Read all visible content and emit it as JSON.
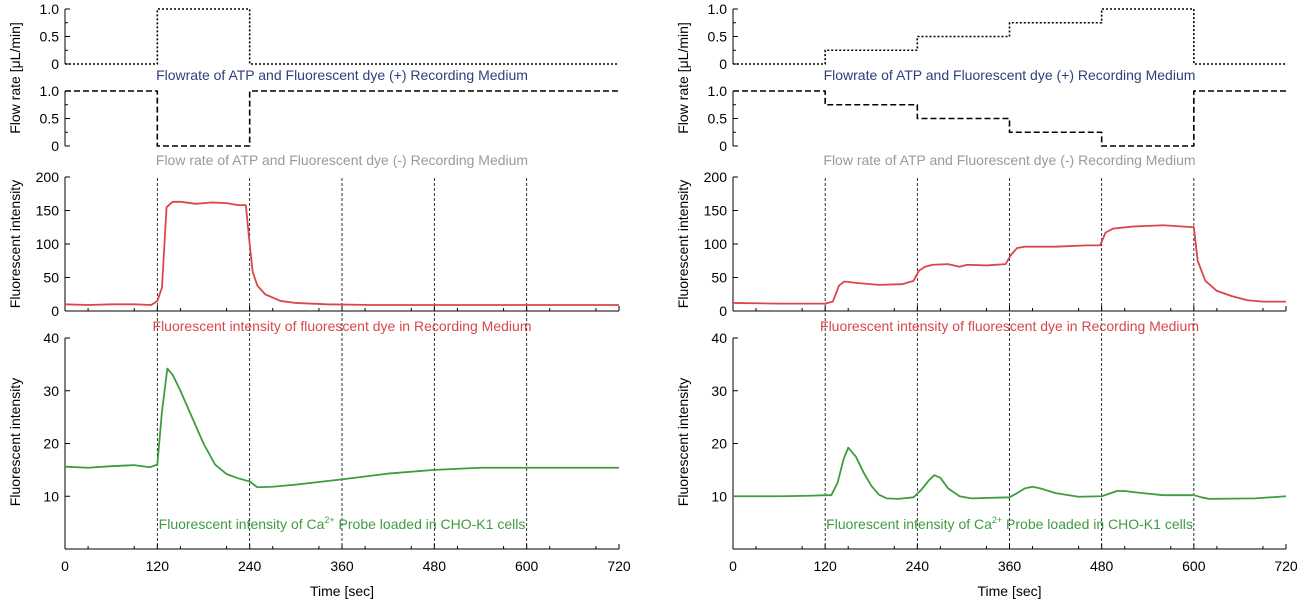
{
  "figure": {
    "x_axis_title": "Time [sec]",
    "y_title_flow_upper": "Flow rate [μL/min]",
    "y_title_fluo": "Fluorescent intensity"
  },
  "colors": {
    "flow_plus_caption": "#2e3f7c",
    "flow_minus_caption": "#9a9a9a",
    "dye": "#d9474a",
    "ca": "#3f9c3f"
  },
  "chart_data": [
    {
      "type": "line",
      "panel": "left-flow-plus",
      "caption": "Flowrate of ATP and Fluorescent dye (+) Recording Medium",
      "xlim": [
        0,
        720
      ],
      "ylim": [
        0,
        1.0
      ],
      "yticks": [
        "0",
        "0.5",
        "1.0"
      ],
      "x": [
        0,
        120,
        120,
        240,
        240,
        720
      ],
      "y": [
        0,
        0,
        1.0,
        1.0,
        0,
        0
      ],
      "line_style": "dotted"
    },
    {
      "type": "line",
      "panel": "left-flow-minus",
      "caption": "Flow rate of ATP and Fluorescent dye (-) Recording Medium",
      "xlim": [
        0,
        720
      ],
      "ylim": [
        0,
        1.0
      ],
      "yticks": [
        "0",
        "0.5",
        "1.0"
      ],
      "x": [
        0,
        120,
        120,
        240,
        240,
        720
      ],
      "y": [
        1.0,
        1.0,
        0,
        0,
        1.0,
        1.0
      ],
      "line_style": "dashed"
    },
    {
      "type": "line",
      "panel": "left-dye",
      "caption": "Fluorescent intensity of fluorescent dye in Recording Medium",
      "xlim": [
        0,
        720
      ],
      "ylim": [
        0,
        200
      ],
      "yticks": [
        "0",
        "50",
        "100",
        "150",
        "200"
      ],
      "x": [
        0,
        30,
        60,
        90,
        112,
        120,
        126,
        132,
        140,
        150,
        170,
        190,
        210,
        225,
        235,
        240,
        244,
        250,
        260,
        280,
        300,
        340,
        400,
        480,
        560,
        600,
        660,
        720
      ],
      "y": [
        10,
        9,
        10,
        10,
        9,
        15,
        35,
        155,
        163,
        163,
        160,
        162,
        161,
        158,
        158,
        100,
        58,
        38,
        25,
        15,
        12,
        10,
        9,
        9,
        9,
        9,
        9,
        9
      ]
    },
    {
      "type": "line",
      "panel": "left-ca",
      "caption": "Fluorescent intensity of Ca",
      "caption_sup": "2+",
      "caption_tail": " Probe loaded in CHO-K1 cells",
      "xlim": [
        0,
        720
      ],
      "ylim": [
        0,
        40
      ],
      "yticks": [
        "10",
        "20",
        "30",
        "40"
      ],
      "x": [
        0,
        30,
        60,
        90,
        110,
        120,
        126,
        133,
        140,
        150,
        165,
        180,
        195,
        210,
        225,
        240,
        250,
        270,
        300,
        360,
        420,
        480,
        540,
        600,
        660,
        720
      ],
      "y": [
        15.6,
        15.4,
        15.7,
        15.9,
        15.5,
        16.0,
        26,
        34.2,
        33,
        30,
        25,
        20,
        16,
        14.2,
        13.4,
        12.8,
        11.7,
        11.8,
        12.2,
        13.2,
        14.3,
        15.0,
        15.4,
        15.4,
        15.4,
        15.4
      ]
    },
    {
      "type": "line",
      "panel": "right-flow-plus",
      "caption": "Flowrate of ATP and Fluorescent dye (+) Recording Medium",
      "xlim": [
        0,
        720
      ],
      "ylim": [
        0,
        1.0
      ],
      "yticks": [
        "0",
        "0.5",
        "1.0"
      ],
      "x": [
        0,
        120,
        120,
        240,
        240,
        360,
        360,
        480,
        480,
        600,
        600,
        720
      ],
      "y": [
        0,
        0,
        0.25,
        0.25,
        0.5,
        0.5,
        0.75,
        0.75,
        1.0,
        1.0,
        0,
        0
      ],
      "line_style": "dotted"
    },
    {
      "type": "line",
      "panel": "right-flow-minus",
      "caption": "Flow rate of ATP and Fluorescent dye (-) Recording Medium",
      "xlim": [
        0,
        720
      ],
      "ylim": [
        0,
        1.0
      ],
      "yticks": [
        "0",
        "0.5",
        "1.0"
      ],
      "x": [
        0,
        120,
        120,
        240,
        240,
        360,
        360,
        480,
        480,
        600,
        600,
        720
      ],
      "y": [
        1.0,
        1.0,
        0.75,
        0.75,
        0.5,
        0.5,
        0.25,
        0.25,
        0,
        0,
        1.0,
        1.0
      ],
      "line_style": "dashed"
    },
    {
      "type": "line",
      "panel": "right-dye",
      "caption": "Fluorescent intensity of fluorescent dye in Recording Medium",
      "xlim": [
        0,
        720
      ],
      "ylim": [
        0,
        200
      ],
      "yticks": [
        "0",
        "50",
        "100",
        "150",
        "200"
      ],
      "x": [
        0,
        60,
        120,
        130,
        138,
        145,
        160,
        190,
        220,
        235,
        242,
        250,
        260,
        280,
        295,
        305,
        330,
        355,
        362,
        370,
        380,
        420,
        460,
        478,
        485,
        495,
        520,
        560,
        600,
        605,
        615,
        630,
        650,
        670,
        690,
        710,
        720
      ],
      "y": [
        12,
        11,
        11,
        14,
        38,
        44,
        42,
        39,
        40,
        45,
        60,
        66,
        69,
        70,
        66,
        69,
        68,
        70,
        84,
        94,
        96,
        96,
        98,
        98,
        117,
        123,
        126,
        128,
        125,
        75,
        45,
        30,
        22,
        16,
        14,
        14,
        14
      ]
    },
    {
      "type": "line",
      "panel": "right-ca",
      "caption": "Fluorescent intensity of Ca",
      "caption_sup": "2+",
      "caption_tail": " Probe loaded in CHO-K1 cells",
      "xlim": [
        0,
        720
      ],
      "ylim": [
        0,
        40
      ],
      "yticks": [
        "10",
        "20",
        "30",
        "40"
      ],
      "x": [
        0,
        60,
        100,
        120,
        128,
        136,
        144,
        150,
        160,
        170,
        180,
        190,
        200,
        215,
        235,
        245,
        255,
        262,
        270,
        280,
        295,
        310,
        360,
        370,
        380,
        390,
        400,
        420,
        450,
        480,
        490,
        500,
        510,
        520,
        560,
        600,
        610,
        620,
        680,
        720
      ],
      "y": [
        10,
        10,
        10.1,
        10.2,
        10.2,
        12.5,
        17,
        19.2,
        17.5,
        14.5,
        12,
        10.3,
        9.6,
        9.5,
        9.8,
        11.2,
        13,
        14,
        13.5,
        11.5,
        10,
        9.6,
        9.8,
        10.6,
        11.5,
        11.8,
        11.5,
        10.6,
        9.9,
        10,
        10.5,
        11,
        11,
        10.8,
        10.2,
        10.2,
        9.8,
        9.5,
        9.6,
        10
      ]
    }
  ],
  "x_ticks": [
    "0",
    "120",
    "240",
    "360",
    "480",
    "600",
    "720"
  ],
  "x_tick_values": [
    0,
    120,
    240,
    360,
    480,
    600,
    720
  ],
  "x_gridlines": [
    120,
    240,
    360,
    480,
    600
  ]
}
